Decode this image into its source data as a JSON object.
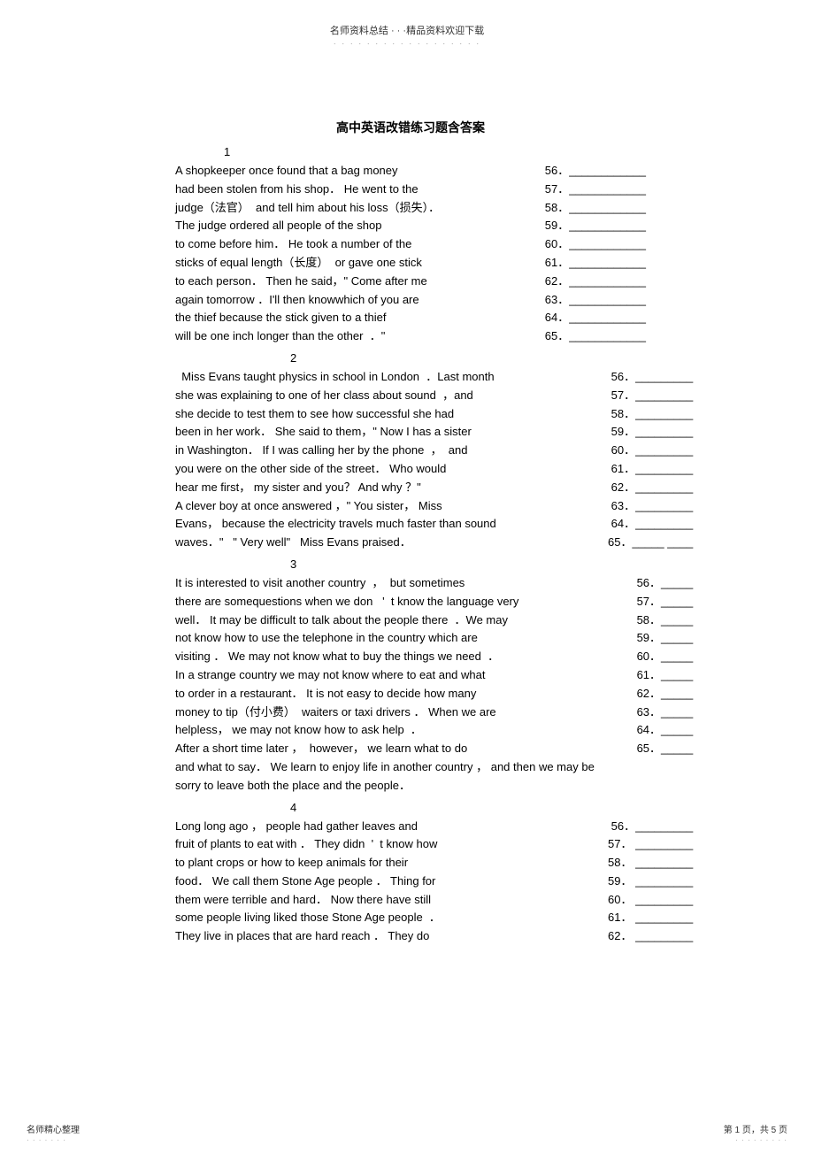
{
  "header": {
    "top": "名师资料总结 · · ·精品资料欢迎下载",
    "dots": "· · · · · · · · · · · · · · · · · ·"
  },
  "title": "高中英语改错练习题含答案",
  "sections": [
    {
      "num": "1",
      "numIndent": "indent1",
      "lines": [
        {
          "text": "A shopkeeper once found that a bag money",
          "blank": "56．____________"
        },
        {
          "text": "had been stolen from his shop． He went to the",
          "blank": "57．____________"
        },
        {
          "text": "judge（法官）  and tell him about his loss（损失）．",
          "blank": "58．____________"
        },
        {
          "text": "The judge ordered all people of the shop",
          "blank": "59．____________"
        },
        {
          "text": "to come before him． He took a number of the",
          "blank": "60．____________"
        },
        {
          "text": "sticks of equal length（长度）  or gave one stick",
          "blank": "61．____________"
        },
        {
          "text": "to each person． Then he said，\" Come after me",
          "blank": "62．____________"
        },
        {
          "text": "again tomorrow ．I'll then knowwhich of you are",
          "blank": " 63．____________"
        },
        {
          "text": "the thief because the stick given to a thief",
          "blank": " 64．____________"
        },
        {
          "text": "will be one inch longer than the other  ．\"",
          "blank": " 65．____________"
        }
      ],
      "tail": []
    },
    {
      "num": "2",
      "numIndent": "indent2",
      "lines": [
        {
          "text": "  Miss Evans taught physics in school in London  ．Last month",
          "blank": "       56．_________"
        },
        {
          "text": "she was explaining to one of her class about sound  ，and",
          "blank": "      57．_________"
        },
        {
          "text": "she decide to test them to see how successful she had",
          "blank": "    58．_________"
        },
        {
          "text": "been in her work． She said to them，\" Now I has a sister",
          "blank": "     59．_________"
        },
        {
          "text": "in Washington． If I was calling her by the phone  ，  and",
          "blank": "      60．_________"
        },
        {
          "text": "you were on the other side of the street． Who would",
          "blank": "      61．_________"
        },
        {
          "text": "hear me first， my sister and you？ And why ？\"",
          "blank": "           62．_________"
        },
        {
          "text": "A clever boy at once answered ，\" You sister， Miss",
          "blank": "          63．_________"
        },
        {
          "text": "Evans， because the electricity travels much faster than sound",
          "blank": "64．_________"
        },
        {
          "text": "waves．\"   \" Very well\"   Miss Evans praised．",
          "blank": "            65．_____ ____"
        }
      ],
      "tail": []
    },
    {
      "num": "3",
      "numIndent": "indent2",
      "lines": [
        {
          "text": "It is interested to visit another country  ，  but sometimes",
          "blank": "       56．_____"
        },
        {
          "text": "there are somequestions when we don   '  t know the language very",
          "blank": " 57．_____"
        },
        {
          "text": "well． It may be difficult to talk about the people there  ．We may",
          "blank": "  58．_____"
        },
        {
          "text": "not know how to use the telephone in the country which are",
          "blank": "       59．_____"
        },
        {
          "text": "visiting ． We may not know what to buy the things we need  ．",
          "blank": "         60．_____"
        },
        {
          "text": "In a strange country we may not know where to eat and what",
          "blank": "       61．_____"
        },
        {
          "text": "to order in a restaurant． It is not easy to decide how many",
          "blank": "      62．_____"
        },
        {
          "text": "money to tip（付小费）  waiters or taxi drivers ． When we are",
          "blank": "         63．_____"
        },
        {
          "text": "helpless， we may not know how to ask help  ．",
          "blank": "                64．_____"
        },
        {
          "text": "After a short time later ，  however， we learn what to do",
          "blank": "        65．_____"
        }
      ],
      "tail": [
        "and what to say． We learn to enjoy life in another country  ，  and then we may be",
        "sorry to leave both the place and the people．"
      ]
    },
    {
      "num": "4",
      "numIndent": "indent2",
      "lines": [
        {
          "text": "Long long ago ， people had gather leaves and",
          "blank": "         56．_________"
        },
        {
          "text": "fruit of plants to eat with ． They didn  '  t know how",
          "blank": "    57． _________"
        },
        {
          "text": "to plant crops or how to keep animals for their",
          "blank": "    58． _________"
        },
        {
          "text": "food． We call them Stone Age people ． Thing for",
          "blank": "        59． _________"
        },
        {
          "text": "them were terrible and hard． Now there have still",
          "blank": "     60． _________"
        },
        {
          "text": "some people living liked those Stone Age people  ．",
          "blank": "      61． _________"
        },
        {
          "text": "They live in places that are hard reach ． They do",
          "blank": "     62． _________"
        }
      ],
      "tail": []
    }
  ],
  "footer": {
    "left": "名师精心整理",
    "leftDots": "· · · · · · ·",
    "right": "第 1 页，共 5 页",
    "rightDots": "· · · · · · · · ·"
  }
}
